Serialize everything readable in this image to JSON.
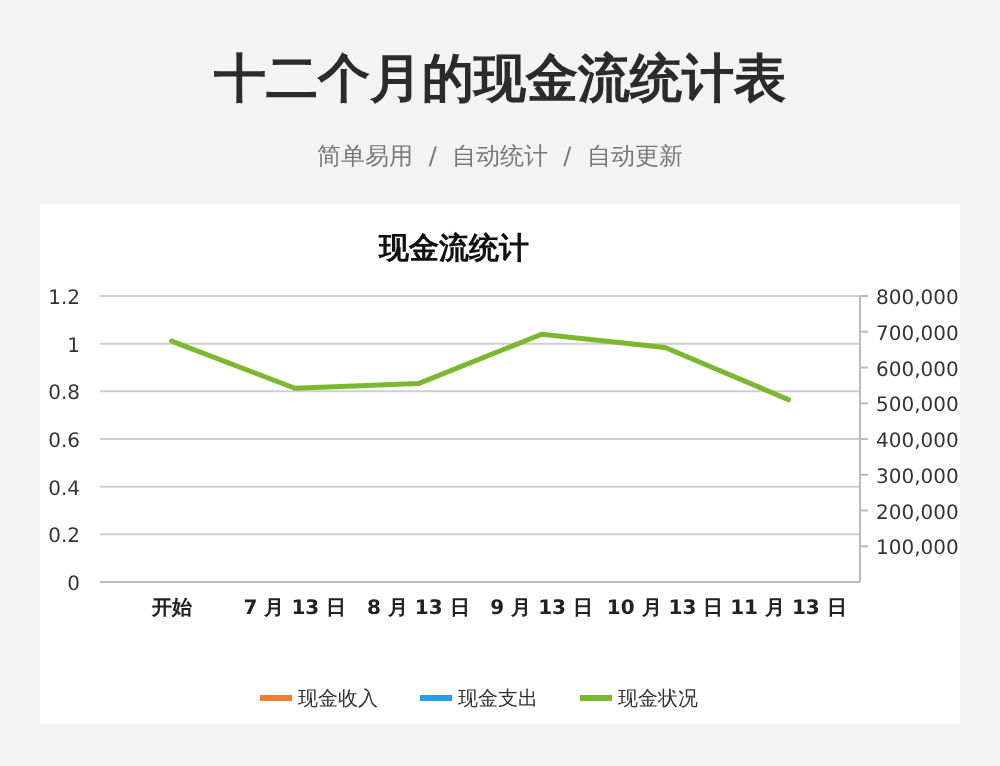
{
  "chart_data": {
    "type": "line",
    "title": "现金流统计",
    "categories": [
      "开始",
      "7 月 13 日",
      "8 月 13 日",
      "9 月 13 日",
      "10 月 13 日",
      "11 月 13 日"
    ],
    "series": [
      {
        "name": "现金收入",
        "color": "#ed7d31",
        "values": [
          null,
          null,
          null,
          null,
          null,
          null
        ]
      },
      {
        "name": "现金支出",
        "color": "#2e9be6",
        "values": [
          null,
          null,
          null,
          null,
          null,
          null
        ]
      },
      {
        "name": "现金状况",
        "color": "#7cb82f",
        "axis": "y2",
        "values": [
          674000,
          542000,
          555000,
          693000,
          656000,
          510000
        ]
      }
    ],
    "ylim": [
      0,
      1.2
    ],
    "yticks": [
      0,
      {
        "value": 0.2,
        "label": "0.2"
      },
      {
        "value": 0.4,
        "label": "0.4"
      },
      {
        "value": 0.6,
        "label": "0.6"
      },
      {
        "value": 0.8,
        "label": "0.8"
      },
      1,
      {
        "value": 1.2,
        "label": "1.2"
      }
    ],
    "y2lim": [
      0,
      800000
    ],
    "y2ticks": [
      {
        "value": 100000,
        "label": "100,000"
      },
      {
        "value": 200000,
        "label": "200,000"
      },
      {
        "value": 300000,
        "label": "300,000"
      },
      {
        "value": 400000,
        "label": "400,000"
      },
      {
        "value": 500000,
        "label": "500,000"
      },
      {
        "value": 600000,
        "label": "600,000"
      },
      {
        "value": 700000,
        "label": "700,000"
      },
      {
        "value": 800000,
        "label": "800,000"
      }
    ],
    "grid": "y",
    "legend": "bottom",
    "marker": "none",
    "line_style": "solid",
    "annotations": [
      "十二个月的现金流统计表",
      "简单易用  /  自动统计  /  自动更新"
    ]
  }
}
